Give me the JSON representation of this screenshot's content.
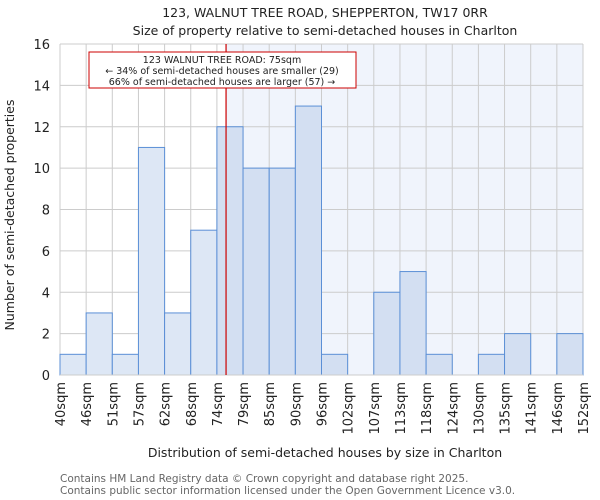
{
  "chart_data": {
    "type": "bar",
    "title": "123, WALNUT TREE ROAD, SHEPPERTON, TW17 0RR",
    "subtitle": "Size of property relative to semi-detached houses in Charlton",
    "xlabel": "Distribution of semi-detached houses by size in Charlton",
    "ylabel": "Number of semi-detached properties",
    "ylim": [
      0,
      16
    ],
    "yticks": [
      0,
      2,
      4,
      6,
      8,
      10,
      12,
      14,
      16
    ],
    "bin_edges": [
      "40sqm",
      "46sqm",
      "51sqm",
      "57sqm",
      "62sqm",
      "68sqm",
      "74sqm",
      "79sqm",
      "85sqm",
      "90sqm",
      "96sqm",
      "102sqm",
      "107sqm",
      "113sqm",
      "118sqm",
      "124sqm",
      "130sqm",
      "135sqm",
      "141sqm",
      "146sqm",
      "152sqm"
    ],
    "values": [
      1,
      3,
      1,
      11,
      3,
      7,
      12,
      10,
      10,
      13,
      1,
      0,
      4,
      5,
      1,
      0,
      1,
      2,
      0,
      2
    ],
    "grid": true,
    "marker": {
      "value_sqm": 75,
      "position_bins": 6.35
    },
    "annotation": {
      "line1": "123 WALNUT TREE ROAD: 75sqm",
      "line2": "← 34% of semi-detached houses are smaller (29)",
      "line3": "66% of semi-detached houses are larger (57) →"
    },
    "colors": {
      "bar_left": "#dde7f5",
      "bar_right": "#d3dff2",
      "edge": "#5b8fd6",
      "marker": "#cc0000",
      "shade": "#f0f4fc"
    }
  },
  "footer": {
    "line1": "Contains HM Land Registry data © Crown copyright and database right 2025.",
    "line2": "Contains public sector information licensed under the Open Government Licence v3.0."
  }
}
